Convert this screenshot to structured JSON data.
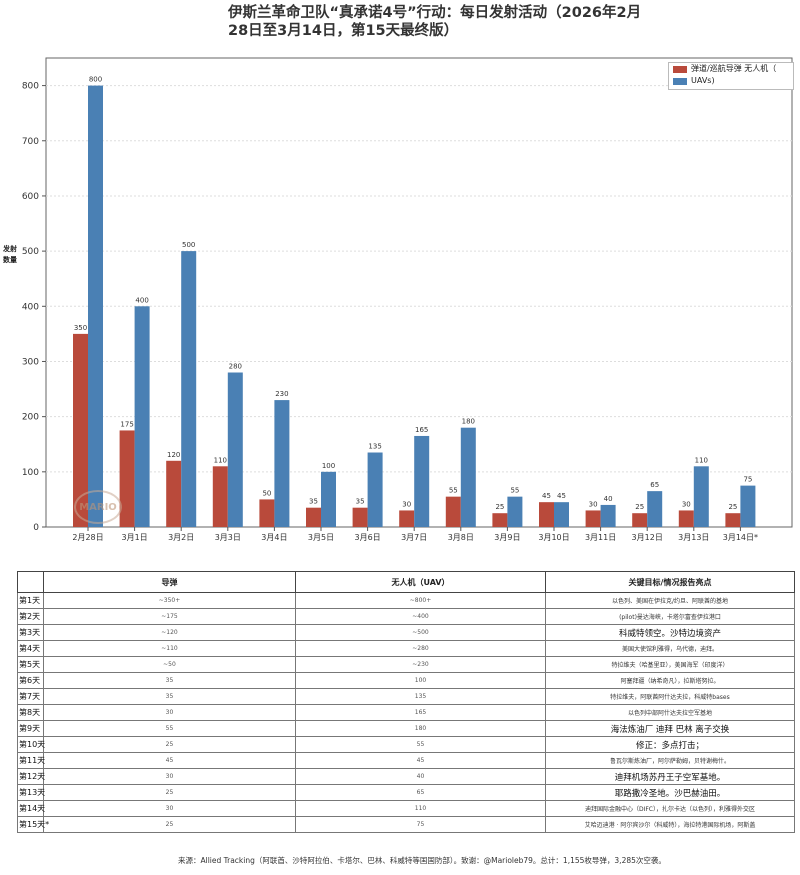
{
  "title": "伊斯兰革命卫队“真承诺4号”行动：每日发射活动（2026年2月28日至3月14日，第15天最终版）",
  "watermark": "MARIO",
  "chart_data": {
    "type": "bar",
    "ylabel": "发射\n数量",
    "ylim": [
      0,
      850
    ],
    "yticks": [
      0,
      100,
      200,
      300,
      400,
      500,
      600,
      700,
      800
    ],
    "grid": true,
    "legend_position": "top-right",
    "categories": [
      "2月28日",
      "3月1日",
      "3月2日",
      "3月3日",
      "3月4日",
      "3月5日",
      "3月6日",
      "3月7日",
      "3月8日",
      "3月9日",
      "3月10日",
      "3月11日",
      "3月12日",
      "3月13日",
      "3月14日*"
    ],
    "series": [
      {
        "name": "弹道/巡航导弹 无人机（",
        "color": "#b94a3b",
        "values": [
          350,
          175,
          120,
          110,
          50,
          35,
          35,
          30,
          55,
          25,
          45,
          30,
          25,
          30,
          25
        ]
      },
      {
        "name": "UAVs)",
        "color": "#4a80b4",
        "values": [
          800,
          400,
          500,
          280,
          230,
          100,
          135,
          165,
          180,
          55,
          45,
          40,
          65,
          110,
          75
        ]
      }
    ]
  },
  "table": {
    "headers": [
      "",
      "导弹",
      "无人机（UAV）",
      "关键目标/情况报告亮点"
    ],
    "rows": [
      {
        "day": "第1天",
        "missiles": "~350+",
        "uav": "~800+",
        "note": "以色列、美国在伊拉克/约旦、阿联酋的基地",
        "big": false
      },
      {
        "day": "第2天",
        "missiles": "~175",
        "uav": "~400",
        "note": "(pilot)曼达海峡，卡塔尔富查伊拉港口",
        "big": false
      },
      {
        "day": "第3天",
        "missiles": "~120",
        "uav": "~500",
        "note": "科威特领空。沙特边境资产",
        "big": true
      },
      {
        "day": "第4天",
        "missiles": "~110",
        "uav": "~280",
        "note": "美国大使馆利雅得，乌代德，迪拜。",
        "big": false
      },
      {
        "day": "第5天",
        "missiles": "~50",
        "uav": "~230",
        "note": "特拉维夫（哈基里亚），美国海军（印度洋）",
        "big": false
      },
      {
        "day": "第6天",
        "missiles": "35",
        "uav": "100",
        "note": "阿塞拜疆（纳希奇凡），拉斯塔努拉。",
        "big": false
      },
      {
        "day": "第7天",
        "missiles": "35",
        "uav": "135",
        "note": "特拉维夫，阿联酋阿什达夫拉，科威特bases",
        "big": false
      },
      {
        "day": "第8天",
        "missiles": "30",
        "uav": "165",
        "note": "以色列中部阿什达夫拉空军基地",
        "big": false
      },
      {
        "day": "第9天",
        "missiles": "55",
        "uav": "180",
        "note": "海法炼油厂 迪拜 巴林 离子交换",
        "big": true
      },
      {
        "day": "第10天",
        "missiles": "25",
        "uav": "55",
        "note": "修正：多点打击；",
        "big": true
      },
      {
        "day": "第11天",
        "missiles": "45",
        "uav": "45",
        "note": "鲁瓦尔斯炼油厂，阿尔萨勒姆，贝特谢梅什。",
        "big": false
      },
      {
        "day": "第12天",
        "missiles": "30",
        "uav": "40",
        "note": "迪拜机场苏丹王子空军基地。",
        "big": true
      },
      {
        "day": "第13天",
        "missiles": "25",
        "uav": "65",
        "note": "耶路撒冷圣地。沙巴赫油田。",
        "big": true
      },
      {
        "day": "第14天",
        "missiles": "30",
        "uav": "110",
        "note": "迪拜国际金融中心（DIFC），扎尔卡达（以色列），利雅得外交区",
        "big": false
      },
      {
        "day": "第15天*",
        "missiles": "25",
        "uav": "75",
        "note": "艾哈迈迪港 · 阿尔宾沙尔（科威特），海拉特港国际机场，阿斯盖",
        "big": false
      }
    ]
  },
  "source": "来源：Allied Tracking（阿联酋、沙特阿拉伯、卡塔尔、巴林、科威特等国国防部）。致谢：@Marioleb79。总计：1,155枚导弹，3,285次空袭。"
}
